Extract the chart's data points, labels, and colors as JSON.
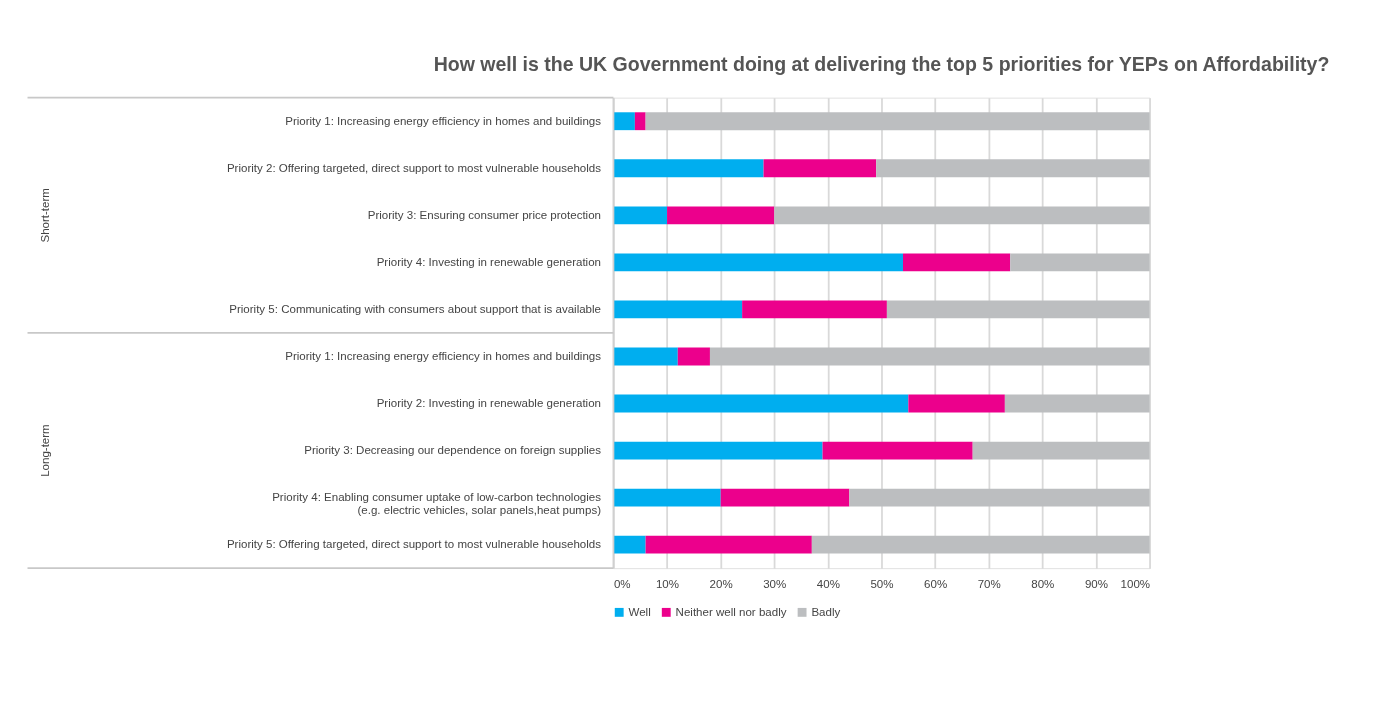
{
  "chart_data": {
    "type": "bar",
    "orientation": "horizontal",
    "stacked": true,
    "title": "How well is the UK Government doing at delivering the top 5 priorities for YEPs on Affordability?",
    "categories": [
      "Priority 1: Increasing energy efficiency in homes and buildings",
      "Priority 2: Offering targeted, direct support to most vulnerable households",
      "Priority 3: Ensuring consumer price protection",
      "Priority 4: Investing in renewable generation",
      "Priority 5: Communicating with consumers about support that is available",
      "Priority 1: Increasing energy efficiency in homes and buildings",
      "Priority 2: Investing in renewable generation",
      "Priority 3: Decreasing our dependence on foreign supplies",
      "Priority 4: Enabling consumer uptake of low-carbon technologies\n(e.g. electric vehicles, solar panels,heat pumps)",
      "Priority 5: Offering targeted, direct support to most vulnerable households"
    ],
    "series": [
      {
        "name": "Well",
        "color": "#00aeef",
        "values": [
          4,
          28,
          10,
          54,
          24,
          12,
          55,
          39,
          20,
          6
        ]
      },
      {
        "name": "Neither well nor badly",
        "color": "#ec008c",
        "values": [
          2,
          21,
          20,
          20,
          27,
          6,
          18,
          28,
          24,
          31
        ]
      },
      {
        "name": "Badly",
        "color": "#bcbec0",
        "values": [
          94,
          51,
          70,
          26,
          49,
          82,
          27,
          33,
          56,
          63
        ]
      }
    ],
    "xlim": [
      0,
      100
    ],
    "xticks": [
      {
        "value": 0,
        "label": "0%"
      },
      {
        "value": 10,
        "label": "10%"
      },
      {
        "value": 20,
        "label": "20%"
      },
      {
        "value": 30,
        "label": "30%"
      },
      {
        "value": 40,
        "label": "40%"
      },
      {
        "value": 50,
        "label": "50%"
      },
      {
        "value": 60,
        "label": "60%"
      },
      {
        "value": 70,
        "label": "70%"
      },
      {
        "value": 80,
        "label": "80%"
      },
      {
        "value": 90,
        "label": "90%"
      },
      {
        "value": 100,
        "label": "100%"
      }
    ],
    "grid": "x",
    "legend": "bottom",
    "annotations": [
      "Short-term",
      "Long-term"
    ]
  }
}
